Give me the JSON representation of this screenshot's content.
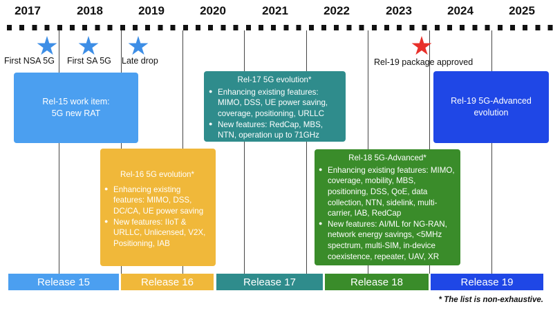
{
  "years": [
    "2017",
    "2018",
    "2019",
    "2020",
    "2021",
    "2022",
    "2023",
    "2024",
    "2025"
  ],
  "milestones": [
    {
      "label": "First NSA 5G",
      "star_color": "#3d8ee6"
    },
    {
      "label": "First SA 5G",
      "star_color": "#3d8ee6"
    },
    {
      "label": "Late drop",
      "star_color": "#3d8ee6"
    },
    {
      "label": "Rel-19 package approved",
      "star_color": "#e8302a"
    }
  ],
  "boxes": {
    "rel15": {
      "lines": [
        "Rel-15 work item:",
        "5G new RAT"
      ],
      "color": "#4b9ff0"
    },
    "rel16": {
      "title": "Rel-16 5G evolution*",
      "bullets": [
        "Enhancing existing features: MIMO, DSS, DC/CA, UE power saving",
        "New features: IIoT & URLLC, Unlicensed, V2X, Positioning, IAB"
      ],
      "color": "#f0b83a"
    },
    "rel17": {
      "title": "Rel-17 5G evolution*",
      "bullets": [
        "Enhancing existing features: MIMO, DSS, UE power saving, coverage, positioning, URLLC",
        "New features: RedCap, MBS, NTN, operation up to 71GHz"
      ],
      "color": "#2f8c8c"
    },
    "rel18": {
      "title": "Rel-18 5G-Advanced*",
      "bullets": [
        "Enhancing existing features: MIMO, coverage, mobility, MBS, positioning, DSS, QoE, data collection, NTN, sidelink, multi-carrier, IAB, RedCap",
        "New features: AI/ML for NG-RAN, network energy savings, <5MHz spectrum, multi-SIM, in-device coexistence, repeater, UAV, XR"
      ],
      "color": "#3a8c2a"
    },
    "rel19": {
      "lines": [
        "Rel-19 5G-Advanced",
        "evolution"
      ],
      "color": "#1f47e6"
    }
  },
  "releases": [
    {
      "label": "Release 15",
      "color": "#4b9ff0"
    },
    {
      "label": "Release 16",
      "color": "#f0b83a"
    },
    {
      "label": "Release 17",
      "color": "#2f8c8c"
    },
    {
      "label": "Release 18",
      "color": "#3a8c2a"
    },
    {
      "label": "Release 19",
      "color": "#1f47e6"
    }
  ],
  "footnote": "* The list is non-exhaustive."
}
